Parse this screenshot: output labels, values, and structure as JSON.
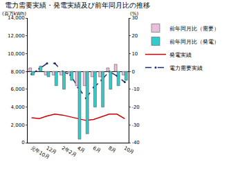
{
  "chart_data": {
    "type": "bar",
    "title": "電力需要実績・発電実績及び前年同月比の推移",
    "y_label": "(百万kWh)",
    "y2_label": "(%)",
    "categories": [
      "元年10月",
      null,
      "12月",
      null,
      "2年2月",
      null,
      "4月",
      null,
      "6月",
      null,
      "8月",
      null,
      "10月"
    ],
    "series": [
      {
        "name": "発電実績",
        "type": "line",
        "color": "#cc0000",
        "line_style": "solid",
        "marker": "none",
        "values": [
          2800,
          2700,
          3000,
          3200,
          3100,
          2900,
          2700,
          2500,
          2600,
          2900,
          3200,
          3200,
          2700
        ]
      },
      {
        "name": "電力需要実績",
        "type": "line",
        "color": "#1f2a6b",
        "line_style": "dash",
        "marker": "circle",
        "values": [
          7700,
          8300,
          8900,
          8900,
          8000,
          7600,
          6200,
          5000,
          6200,
          7000,
          8000,
          7500,
          6800
        ]
      },
      {
        "name": "前年同月比（需要）",
        "type": "bar",
        "axis": "y2",
        "color": "#e8c0dc",
        "values": [
          2,
          0,
          -2,
          -2,
          -2,
          -1,
          -8,
          -8,
          -3,
          -3,
          2,
          4,
          -2
        ]
      },
      {
        "name": "前年同月比（発電）",
        "type": "bar",
        "axis": "y2",
        "color": "#33cccc",
        "values": [
          -2,
          3,
          -3,
          -8,
          -10,
          -5,
          -38,
          -35,
          -20,
          -20,
          -10,
          -8,
          -5
        ]
      }
    ],
    "ylim": [
      0,
      14000
    ],
    "yticks": [
      0,
      {
        "value": 2000,
        "label": "2,000"
      },
      {
        "value": 4000,
        "label": "4,000"
      },
      {
        "value": 6000,
        "label": "6,000"
      },
      {
        "value": 8000,
        "label": "8,000"
      },
      {
        "value": 10000,
        "label": "10,000"
      },
      {
        "value": 12000,
        "label": "12,000"
      },
      {
        "value": 14000,
        "label": "14,000"
      }
    ],
    "y2lim": [
      -40,
      30
    ],
    "y2ticks": [
      -40,
      -30,
      -20,
      -10,
      0,
      10,
      20,
      30
    ],
    "grid": false,
    "legend": "right"
  }
}
